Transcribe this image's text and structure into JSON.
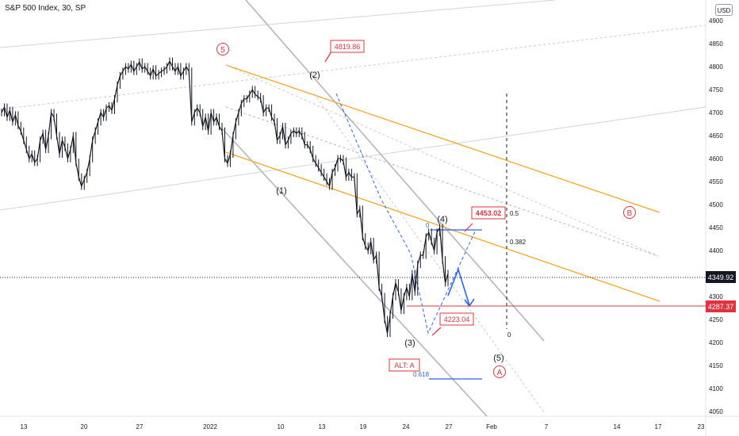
{
  "header": {
    "symbol_title": "S&P 500 Index, 30, SP",
    "currency": "USD"
  },
  "chart_data": {
    "type": "line",
    "title": "S&P 500 Index, 30, SP",
    "x_ticks": [
      "13",
      "20",
      "27",
      "2022",
      "10",
      "13",
      "19",
      "24",
      "27",
      "Feb",
      "7",
      "14",
      "17",
      "23"
    ],
    "y_ticks": [
      4900,
      4850,
      4800,
      4750,
      4700,
      4650,
      4600,
      4550,
      4500,
      4450,
      4400,
      4350,
      4300,
      4250,
      4200,
      4150,
      4100,
      4050
    ],
    "ylim": [
      4040,
      4945
    ],
    "series": [
      {
        "values": [
          4700,
          4712,
          4690,
          4705,
          4680,
          4695,
          4672,
          4660,
          4640,
          4620,
          4600,
          4610,
          4592,
          4600,
          4640,
          4655,
          4620,
          4650,
          4700,
          4690,
          4650,
          4610,
          4640,
          4625,
          4600,
          4620,
          4650,
          4592,
          4560,
          4540,
          4555,
          4570,
          4600,
          4640,
          4660,
          4680,
          4700,
          4690,
          4710,
          4715,
          4705,
          4730,
          4760,
          4780,
          4790,
          4800,
          4795,
          4805,
          4790,
          4800,
          4810,
          4795,
          4800,
          4790,
          4780,
          4795,
          4780,
          4785,
          4790,
          4793,
          4800,
          4812,
          4800,
          4790,
          4800,
          4780,
          4790,
          4800,
          4790,
          4680,
          4700,
          4710,
          4700,
          4670,
          4690,
          4660,
          4700,
          4680,
          4690,
          4670,
          4660,
          4600,
          4590,
          4610,
          4650,
          4680,
          4700,
          4720,
          4730,
          4730,
          4740,
          4750,
          4740,
          4735,
          4730,
          4700,
          4710,
          4710,
          4690,
          4680,
          4640,
          4650,
          4670,
          4630,
          4640,
          4655,
          4660,
          4655,
          4660,
          4650,
          4630,
          4630,
          4620,
          4600,
          4590,
          4580,
          4570,
          4560,
          4550,
          4540,
          4570,
          4580,
          4600,
          4600,
          4595,
          4560,
          4570,
          4560,
          4560,
          4480,
          4490,
          4430,
          4410,
          4400,
          4420,
          4380,
          4390,
          4320,
          4300,
          4250,
          4220,
          4260,
          4300,
          4330,
          4310,
          4270,
          4300,
          4320,
          4300,
          4350,
          4310,
          4370,
          4390,
          4390,
          4430,
          4440,
          4420,
          4400,
          4440,
          4450,
          4380,
          4330,
          4350
        ]
      }
    ],
    "last_price": "4349.92",
    "reference_price": "4287.37",
    "wave_labels": [
      "5",
      "(2)",
      "(1)",
      "(3)",
      "(4)",
      "(5)",
      "A",
      "B"
    ],
    "price_callouts": [
      "4819.86",
      "4453.02",
      "4223.04"
    ],
    "alt_label": "ALT: A",
    "fib_labels": [
      "0",
      "0.618",
      "0.5",
      "0.382",
      "0"
    ],
    "colors": {
      "candle": "#131722",
      "orange_channel": "#f5a623",
      "gray_channel": "#b2b5be",
      "red": "#e0333f",
      "blue": "#2962ff",
      "dotted": "#c8cad1",
      "axis_text": "#131722"
    }
  }
}
